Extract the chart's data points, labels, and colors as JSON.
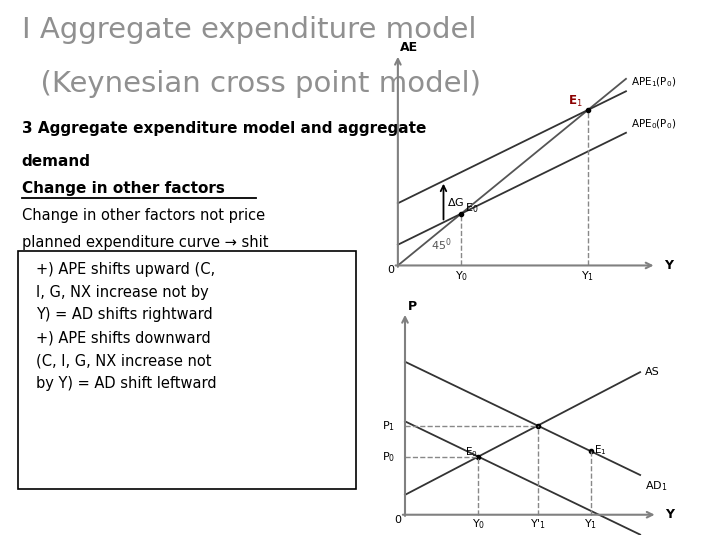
{
  "title_line1": "I Aggregate expenditure model",
  "title_line2": "  (Keynesian cross point model)",
  "subtitle_line1": "3 Aggregate expenditure model and aggregate",
  "subtitle_line2": "demand",
  "heading2": "Change in other factors",
  "para_line1": "Change in other factors not price",
  "para_line2": "planned expenditure curve → shit",
  "box_text_lines": [
    "+) APE shifts upward (C,",
    "I, G, NX increase not by",
    "Y) = AD shifts rightward",
    "+) APE shifts downward",
    "(C, I, G, NX increase not",
    "by Y) = AD shift leftward"
  ],
  "title_color": "#909090",
  "text_color": "#000000"
}
